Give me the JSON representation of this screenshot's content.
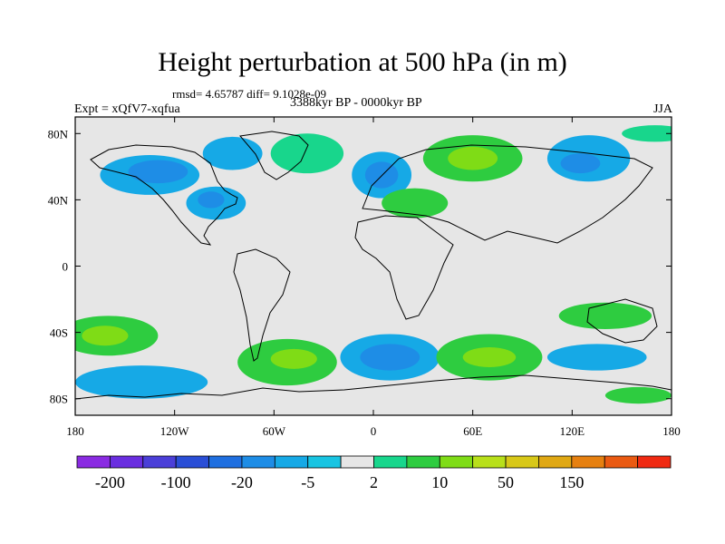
{
  "chart_data": {
    "type": "heatmap",
    "title": "Height perturbation at 500 hPa (in m)",
    "stats_text": "rmsd= 4.65787 diff= 9.1028e-09",
    "period_text": "3388kyr BP - 0000kyr BP",
    "left_label": "Expt = xQfV7-xqfua",
    "right_label": "JJA",
    "projection": "cylindrical equidistant",
    "xlim": [
      -180,
      180
    ],
    "ylim": [
      -90,
      90
    ],
    "x_ticks": [
      {
        "value": -180,
        "label": "180"
      },
      {
        "value": -120,
        "label": "120W"
      },
      {
        "value": -60,
        "label": "60W"
      },
      {
        "value": 0,
        "label": "0"
      },
      {
        "value": 60,
        "label": "60E"
      },
      {
        "value": 120,
        "label": "120E"
      },
      {
        "value": 180,
        "label": "180"
      }
    ],
    "y_ticks": [
      {
        "value": 80,
        "label": "80N"
      },
      {
        "value": 40,
        "label": "40N"
      },
      {
        "value": 0,
        "label": "0"
      },
      {
        "value": -40,
        "label": "40S"
      },
      {
        "value": -80,
        "label": "80S"
      }
    ],
    "colorbar": {
      "colors": [
        "#8a2be2",
        "#6a2ee0",
        "#4b3fd8",
        "#2a4ed6",
        "#1f6fe0",
        "#1e8de6",
        "#16a9e6",
        "#18c4e2",
        "#e6e6e6",
        "#18d68c",
        "#2ecc40",
        "#7fdc16",
        "#b8e01a",
        "#d8c818",
        "#e0a814",
        "#e68010",
        "#ea5a12",
        "#f02a12"
      ],
      "tick_labels": [
        {
          "boundary": 1,
          "label": "-200"
        },
        {
          "boundary": 3,
          "label": "-100"
        },
        {
          "boundary": 5,
          "label": "-20"
        },
        {
          "boundary": 7,
          "label": "-5"
        },
        {
          "boundary": 9,
          "label": "2"
        },
        {
          "boundary": 11,
          "label": "10"
        },
        {
          "boundary": 13,
          "label": "50"
        },
        {
          "boundary": 15,
          "label": "150"
        }
      ]
    },
    "regions": [
      {
        "name": "north-pacific-low",
        "lon": -135,
        "lat": 55,
        "rlon": 30,
        "rlat": 12,
        "level": 6
      },
      {
        "name": "north-pacific-low-core",
        "lon": -130,
        "lat": 57,
        "rlon": 18,
        "rlat": 7,
        "level": 5
      },
      {
        "name": "canada-low",
        "lon": -85,
        "lat": 68,
        "rlon": 18,
        "rlat": 10,
        "level": 6
      },
      {
        "name": "us-low",
        "lon": -95,
        "lat": 38,
        "rlon": 18,
        "rlat": 10,
        "level": 6
      },
      {
        "name": "us-low-core",
        "lon": -98,
        "lat": 40,
        "rlon": 8,
        "rlat": 5,
        "level": 5
      },
      {
        "name": "greenland-high",
        "lon": -40,
        "lat": 68,
        "rlon": 22,
        "rlat": 12,
        "level": 9
      },
      {
        "name": "europe-low",
        "lon": 5,
        "lat": 55,
        "rlon": 18,
        "rlat": 14,
        "level": 6
      },
      {
        "name": "europe-low-core",
        "lon": 5,
        "lat": 55,
        "rlon": 10,
        "rlat": 8,
        "level": 5
      },
      {
        "name": "siberia-high",
        "lon": 60,
        "lat": 65,
        "rlon": 30,
        "rlat": 14,
        "level": 10
      },
      {
        "name": "siberia-high-core",
        "lon": 60,
        "lat": 65,
        "rlon": 15,
        "rlat": 7,
        "level": 11
      },
      {
        "name": "mediterranean-high",
        "lon": 25,
        "lat": 38,
        "rlon": 20,
        "rlat": 9,
        "level": 10
      },
      {
        "name": "east-asia-low",
        "lon": 130,
        "lat": 65,
        "rlon": 25,
        "rlat": 14,
        "level": 6
      },
      {
        "name": "east-asia-low-core",
        "lon": 125,
        "lat": 62,
        "rlon": 12,
        "rlat": 6,
        "level": 5
      },
      {
        "name": "arctic-high",
        "lon": 170,
        "lat": 80,
        "rlon": 20,
        "rlat": 5,
        "level": 9
      },
      {
        "name": "pacific-sw-high",
        "lon": -160,
        "lat": -42,
        "rlon": 30,
        "rlat": 12,
        "level": 10
      },
      {
        "name": "pacific-sw-high-core",
        "lon": -162,
        "lat": -42,
        "rlon": 14,
        "rlat": 6,
        "level": 11
      },
      {
        "name": "se-pacific-low",
        "lon": -140,
        "lat": -70,
        "rlon": 40,
        "rlat": 10,
        "level": 6
      },
      {
        "name": "south-atlantic-high",
        "lon": -52,
        "lat": -58,
        "rlon": 30,
        "rlat": 14,
        "level": 10
      },
      {
        "name": "south-atlantic-high-core",
        "lon": -48,
        "lat": -56,
        "rlon": 14,
        "rlat": 6,
        "level": 11
      },
      {
        "name": "south-atlantic-low",
        "lon": 10,
        "lat": -55,
        "rlon": 30,
        "rlat": 14,
        "level": 6
      },
      {
        "name": "south-atlantic-low-core",
        "lon": 10,
        "lat": -55,
        "rlon": 18,
        "rlat": 8,
        "level": 5
      },
      {
        "name": "indian-ocean-high",
        "lon": 70,
        "lat": -55,
        "rlon": 32,
        "rlat": 14,
        "level": 10
      },
      {
        "name": "indian-ocean-high-core",
        "lon": 70,
        "lat": -55,
        "rlon": 16,
        "rlat": 6,
        "level": 11
      },
      {
        "name": "australia-high",
        "lon": 140,
        "lat": -30,
        "rlon": 28,
        "rlat": 8,
        "level": 10
      },
      {
        "name": "tasman-low",
        "lon": 135,
        "lat": -55,
        "rlon": 30,
        "rlat": 8,
        "level": 6
      },
      {
        "name": "ross-sea-high",
        "lon": 160,
        "lat": -78,
        "rlon": 20,
        "rlat": 5,
        "level": 10
      }
    ]
  }
}
